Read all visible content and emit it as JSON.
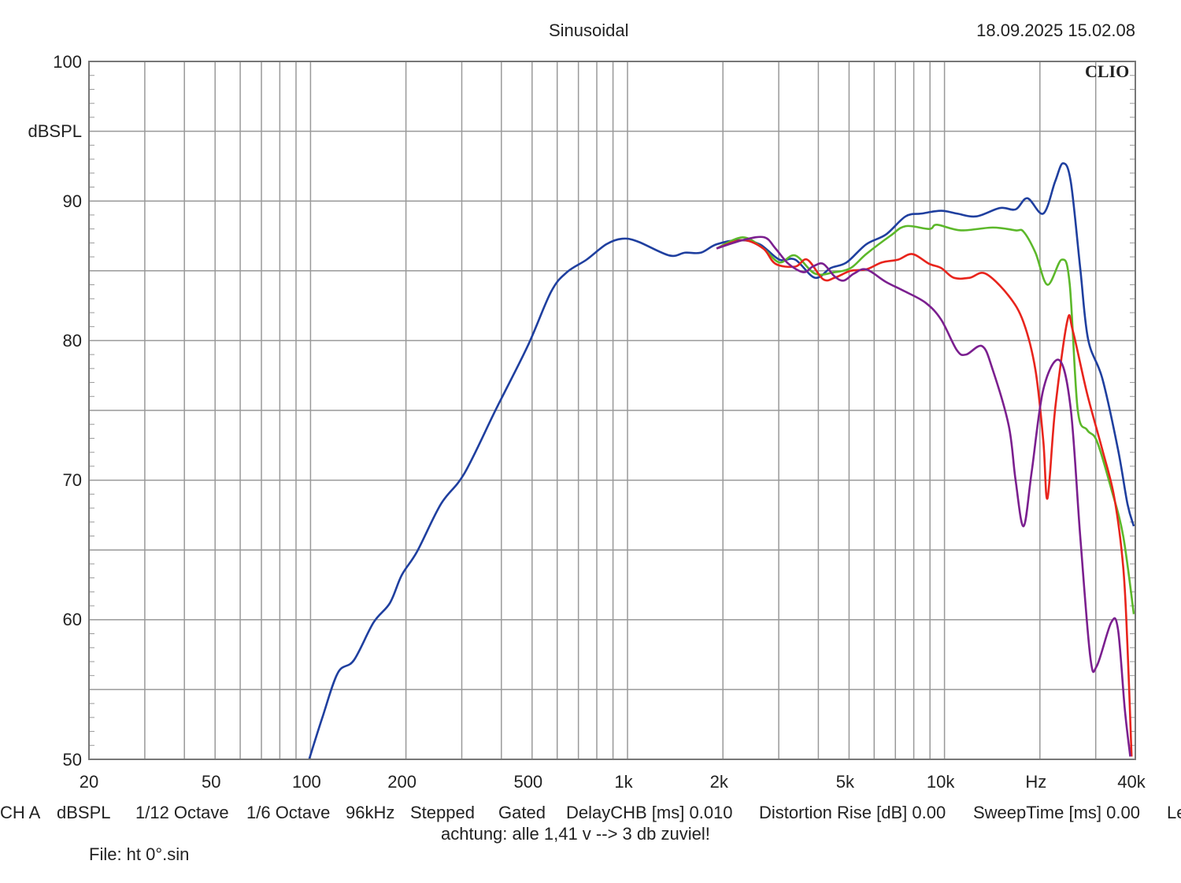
{
  "header": {
    "title": "Sinusoidal",
    "timestamp": "18.09.2025 15.02.08",
    "logo": "CLIO"
  },
  "footer": {
    "items": [
      "CH A",
      "dBSPL",
      "1/12 Octave",
      "1/6 Octave",
      "96kHz",
      "Stepped",
      "Gated",
      "DelayCHB [ms] 0.010",
      "Distortion Rise [dB] 0.00",
      "SweepTime [ms] 0.00",
      "Le"
    ],
    "note": "achtung: alle 1,41 v --> 3 db zuviel!",
    "file": "File: ht 0°.sin"
  },
  "chart_data": {
    "type": "line",
    "title": "Sinusoidal",
    "xlabel": "Hz",
    "ylabel": "dBSPL",
    "xscale": "log",
    "xlim": [
      20,
      40000
    ],
    "ylim": [
      50,
      100
    ],
    "grid": true,
    "x_tick_labels": [
      "20",
      "50",
      "100",
      "200",
      "500",
      "1k",
      "2k",
      "5k",
      "10k",
      "Hz",
      "40k"
    ],
    "y_tick_labels": [
      "100",
      "dBSPL",
      "90",
      "80",
      "70",
      "60",
      "50"
    ],
    "series": [
      {
        "color": "#1f3f9f",
        "points": [
          [
            99,
            50.0
          ],
          [
            109,
            53.0
          ],
          [
            122,
            56.2
          ],
          [
            137,
            57.1
          ],
          [
            158,
            59.8
          ],
          [
            178,
            61.2
          ],
          [
            194,
            63.2
          ],
          [
            217,
            64.9
          ],
          [
            258,
            68.3
          ],
          [
            306,
            70.5
          ],
          [
            385,
            75.1
          ],
          [
            484,
            79.6
          ],
          [
            574,
            83.5
          ],
          [
            644,
            84.9
          ],
          [
            743,
            85.8
          ],
          [
            857,
            86.9
          ],
          [
            962,
            87.3
          ],
          [
            1077,
            87.1
          ],
          [
            1355,
            86.1
          ],
          [
            1519,
            86.3
          ],
          [
            1703,
            86.3
          ],
          [
            1910,
            86.9
          ],
          [
            2265,
            87.2
          ],
          [
            2613,
            86.9
          ],
          [
            3014,
            85.8
          ],
          [
            3381,
            85.8
          ],
          [
            3902,
            84.5
          ],
          [
            4376,
            85.2
          ],
          [
            4909,
            85.6
          ],
          [
            5664,
            86.9
          ],
          [
            6536,
            87.6
          ],
          [
            7540,
            88.9
          ],
          [
            8458,
            89.1
          ],
          [
            9758,
            89.3
          ],
          [
            10950,
            89.1
          ],
          [
            12600,
            88.9
          ],
          [
            14960,
            89.5
          ],
          [
            16760,
            89.4
          ],
          [
            18270,
            90.2
          ],
          [
            20500,
            89.1
          ],
          [
            22340,
            91.4
          ],
          [
            23650,
            92.7
          ],
          [
            25020,
            91.4
          ],
          [
            26800,
            85.2
          ],
          [
            28380,
            80.1
          ],
          [
            31460,
            77.3
          ],
          [
            35270,
            72.2
          ],
          [
            37780,
            68.3
          ],
          [
            39560,
            66.7
          ]
        ]
      },
      {
        "color": "#5cb82a",
        "points": [
          [
            1910,
            86.6
          ],
          [
            2310,
            87.4
          ],
          [
            2680,
            86.6
          ],
          [
            3014,
            85.6
          ],
          [
            3381,
            86.1
          ],
          [
            3902,
            84.8
          ],
          [
            4500,
            84.9
          ],
          [
            5060,
            85.2
          ],
          [
            5664,
            86.2
          ],
          [
            6740,
            87.5
          ],
          [
            7540,
            88.2
          ],
          [
            8950,
            88.0
          ],
          [
            9470,
            88.3
          ],
          [
            11260,
            87.9
          ],
          [
            14200,
            88.1
          ],
          [
            16760,
            87.9
          ],
          [
            17760,
            87.8
          ],
          [
            19360,
            86.3
          ],
          [
            21130,
            84.0
          ],
          [
            23440,
            85.8
          ],
          [
            24820,
            84.1
          ],
          [
            26300,
            75.1
          ],
          [
            28180,
            73.6
          ],
          [
            30250,
            72.8
          ],
          [
            33560,
            69.4
          ],
          [
            36620,
            66.0
          ],
          [
            39560,
            60.4
          ]
        ]
      },
      {
        "color": "#e8241c",
        "points": [
          [
            1910,
            86.6
          ],
          [
            2310,
            87.2
          ],
          [
            2680,
            86.6
          ],
          [
            2930,
            85.5
          ],
          [
            3381,
            85.3
          ],
          [
            3690,
            85.8
          ],
          [
            4140,
            84.4
          ],
          [
            4500,
            84.5
          ],
          [
            5060,
            85.0
          ],
          [
            5664,
            85.1
          ],
          [
            6350,
            85.6
          ],
          [
            7140,
            85.8
          ],
          [
            7920,
            86.2
          ],
          [
            8950,
            85.5
          ],
          [
            9760,
            85.2
          ],
          [
            10700,
            84.5
          ],
          [
            12000,
            84.5
          ],
          [
            13460,
            84.8
          ],
          [
            15950,
            83.2
          ],
          [
            17760,
            81.3
          ],
          [
            19360,
            77.9
          ],
          [
            20500,
            72.8
          ],
          [
            21130,
            68.7
          ],
          [
            22340,
            75.1
          ],
          [
            24400,
            81.4
          ],
          [
            25400,
            80.7
          ],
          [
            28180,
            76.2
          ],
          [
            31460,
            72.2
          ],
          [
            34300,
            68.8
          ],
          [
            36620,
            63.8
          ],
          [
            37780,
            58.1
          ],
          [
            38920,
            50.2
          ]
        ]
      },
      {
        "color": "#7b1f8f",
        "points": [
          [
            1910,
            86.6
          ],
          [
            2310,
            87.2
          ],
          [
            2700,
            87.4
          ],
          [
            2930,
            86.6
          ],
          [
            3220,
            85.5
          ],
          [
            3590,
            84.9
          ],
          [
            3840,
            85.3
          ],
          [
            4140,
            85.5
          ],
          [
            4500,
            84.6
          ],
          [
            4810,
            84.3
          ],
          [
            5180,
            84.8
          ],
          [
            5664,
            85.1
          ],
          [
            6540,
            84.2
          ],
          [
            7540,
            83.5
          ],
          [
            8730,
            82.7
          ],
          [
            9760,
            81.5
          ],
          [
            10950,
            79.3
          ],
          [
            11700,
            79.0
          ],
          [
            13150,
            79.6
          ],
          [
            14200,
            77.9
          ],
          [
            15950,
            73.9
          ],
          [
            16760,
            70.0
          ],
          [
            17760,
            66.7
          ],
          [
            18840,
            70.6
          ],
          [
            20500,
            76.5
          ],
          [
            23020,
            78.6
          ],
          [
            25020,
            75.1
          ],
          [
            26800,
            66.0
          ],
          [
            28850,
            57.3
          ],
          [
            30250,
            56.7
          ],
          [
            33560,
            59.8
          ],
          [
            35270,
            59.3
          ],
          [
            37050,
            53.6
          ],
          [
            38550,
            50.2
          ]
        ]
      }
    ]
  }
}
